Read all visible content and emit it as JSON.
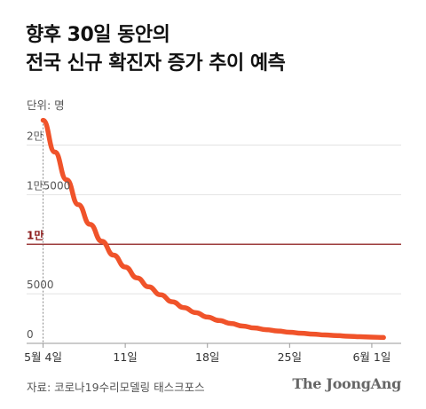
{
  "header": {
    "title_line1": "향후 30일 동안의",
    "title_line2": "전국 신규 확진자 증가 추이 예측",
    "unit": "단위: 명"
  },
  "footer": {
    "source": "자료: 코로나19수리모델링 태스크포스",
    "brand": "The JoongAng"
  },
  "colors": {
    "line": "#f0532a",
    "highlight": "#8b1a1a",
    "grid": "#e2e2e2",
    "axis": "#999999",
    "text": "#555555"
  },
  "chart_data": {
    "type": "line",
    "title": "향후 30일 동안의 전국 신규 확진자 증가 추이 예측",
    "ylabel": "단위: 명",
    "x_start": "5월 4일",
    "x_ticks": [
      {
        "day": 0,
        "label": "5월 4일"
      },
      {
        "day": 7,
        "label": "11일"
      },
      {
        "day": 14,
        "label": "18일"
      },
      {
        "day": 21,
        "label": "25일"
      },
      {
        "day": 28,
        "label": "6월 1일"
      }
    ],
    "y_ticks": [
      {
        "value": 0,
        "label": "0"
      },
      {
        "value": 5000,
        "label": "5000"
      },
      {
        "value": 10000,
        "label": "1만",
        "highlight": true
      },
      {
        "value": 15000,
        "label": "1만5000"
      },
      {
        "value": 20000,
        "label": "2만"
      }
    ],
    "ylim": [
      0,
      23000
    ],
    "xlim": [
      -1.4,
      30.5
    ],
    "series": [
      {
        "values": [
          {
            "day": 0,
            "value": 22500
          },
          {
            "day": 1,
            "value": 19300
          },
          {
            "day": 2,
            "value": 16500
          },
          {
            "day": 3,
            "value": 14000
          },
          {
            "day": 4,
            "value": 12000
          },
          {
            "day": 5,
            "value": 10300
          },
          {
            "day": 6,
            "value": 8900
          },
          {
            "day": 7,
            "value": 7700
          },
          {
            "day": 8,
            "value": 6600
          },
          {
            "day": 9,
            "value": 5700
          },
          {
            "day": 10,
            "value": 4900
          },
          {
            "day": 11,
            "value": 4200
          },
          {
            "day": 12,
            "value": 3600
          },
          {
            "day": 13,
            "value": 3100
          },
          {
            "day": 14,
            "value": 2650
          },
          {
            "day": 15,
            "value": 2300
          },
          {
            "day": 16,
            "value": 2000
          },
          {
            "day": 17,
            "value": 1750
          },
          {
            "day": 18,
            "value": 1550
          },
          {
            "day": 19,
            "value": 1380
          },
          {
            "day": 20,
            "value": 1240
          },
          {
            "day": 21,
            "value": 1120
          },
          {
            "day": 22,
            "value": 1020
          },
          {
            "day": 23,
            "value": 930
          },
          {
            "day": 24,
            "value": 850
          },
          {
            "day": 25,
            "value": 780
          },
          {
            "day": 26,
            "value": 720
          },
          {
            "day": 27,
            "value": 670
          },
          {
            "day": 28,
            "value": 630
          },
          {
            "day": 29,
            "value": 590
          }
        ]
      }
    ]
  }
}
